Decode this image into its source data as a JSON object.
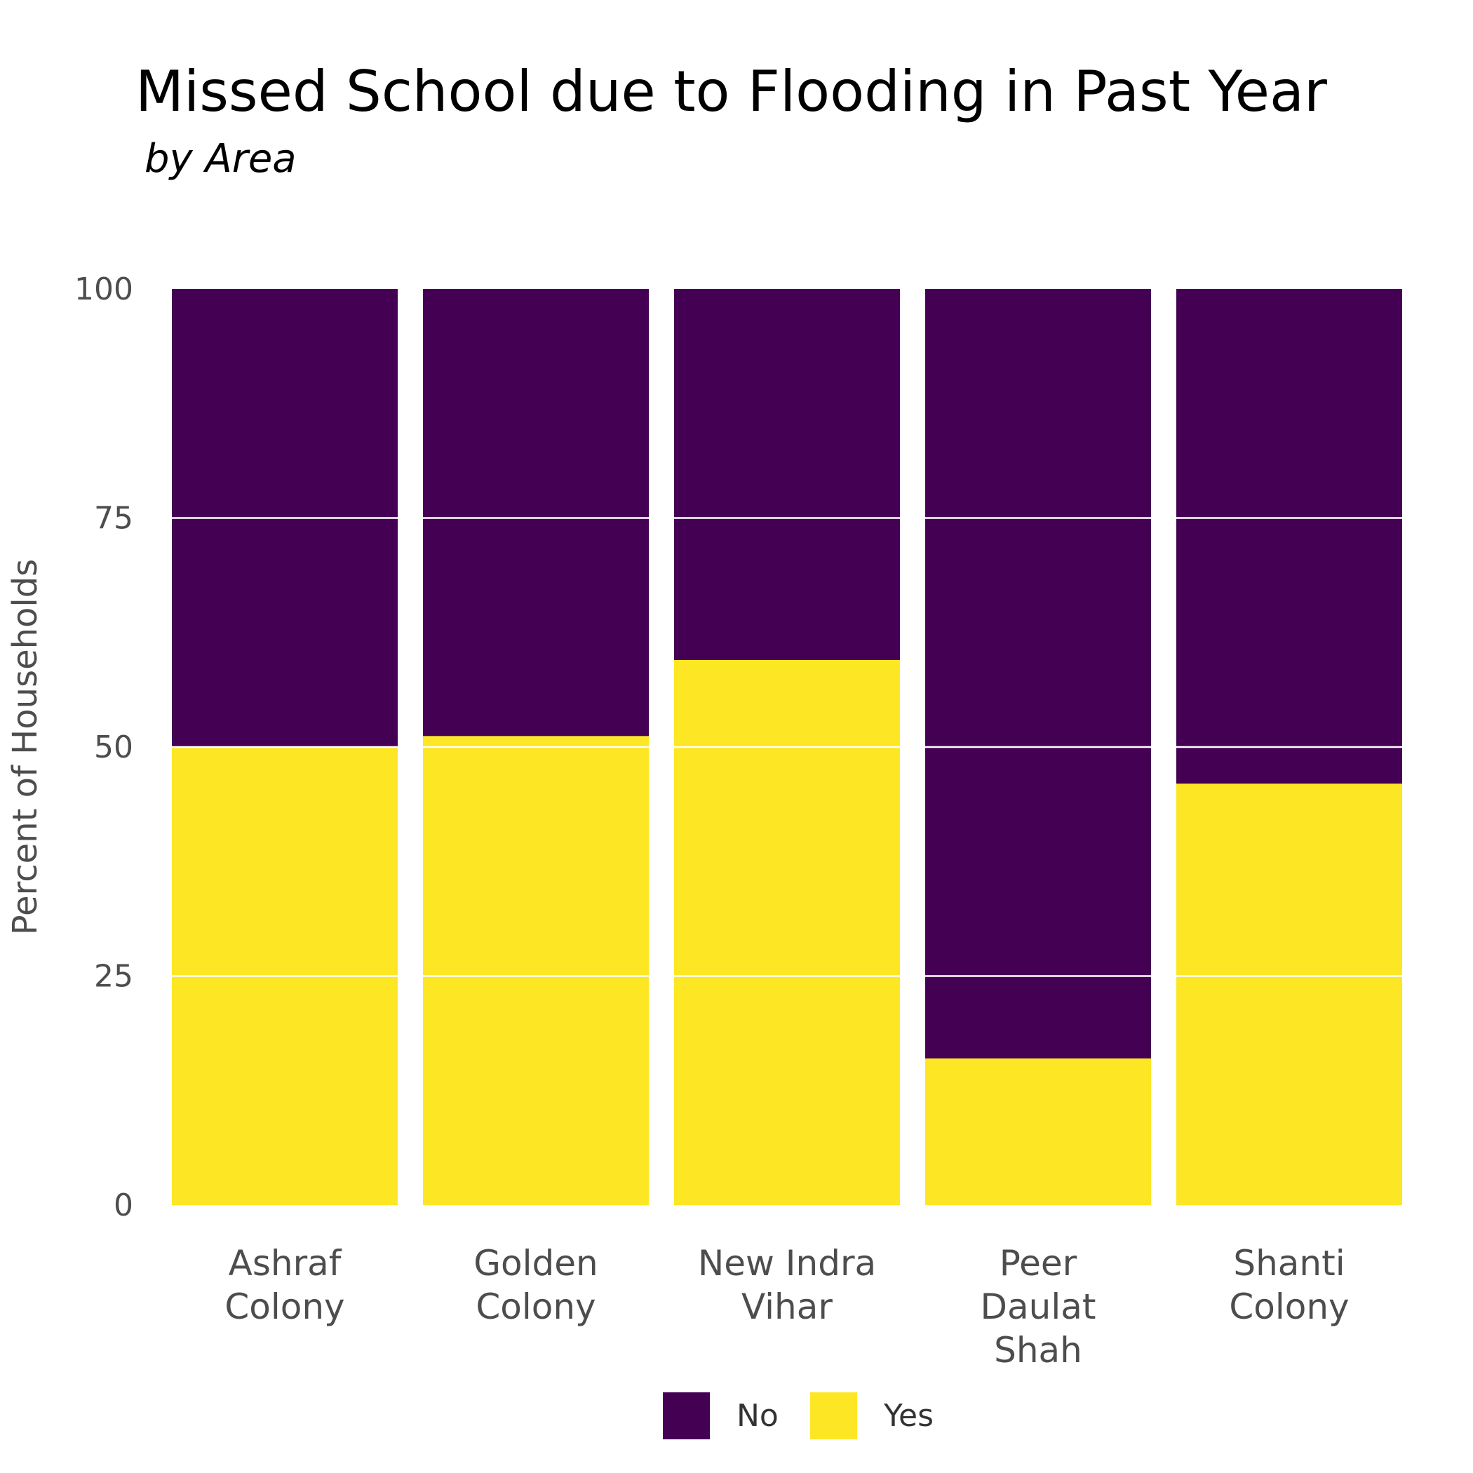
{
  "chart_data": {
    "type": "bar",
    "stacked": true,
    "title": "Missed School due to Flooding in Past Year",
    "subtitle": "by Area",
    "xlabel": "",
    "ylabel": "Percent of Households",
    "ylim": [
      0,
      100
    ],
    "yticks": [
      "0",
      "25",
      "50",
      "75",
      "100"
    ],
    "categories": [
      [
        "Ashraf",
        "Colony"
      ],
      [
        "Golden",
        "Colony"
      ],
      [
        "New Indra",
        "Vihar"
      ],
      [
        "Peer",
        "Daulat",
        "Shah"
      ],
      [
        "Shanti",
        "Colony"
      ]
    ],
    "series": [
      {
        "name": "Yes",
        "color": "#FDE725",
        "values": [
          50,
          51.2,
          59.5,
          16,
          46
        ]
      },
      {
        "name": "No",
        "color": "#440154",
        "values": [
          50,
          48.8,
          40.5,
          84,
          54
        ]
      }
    ],
    "grid": true,
    "legend_position": "bottom",
    "legend_order": [
      "No",
      "Yes"
    ]
  }
}
